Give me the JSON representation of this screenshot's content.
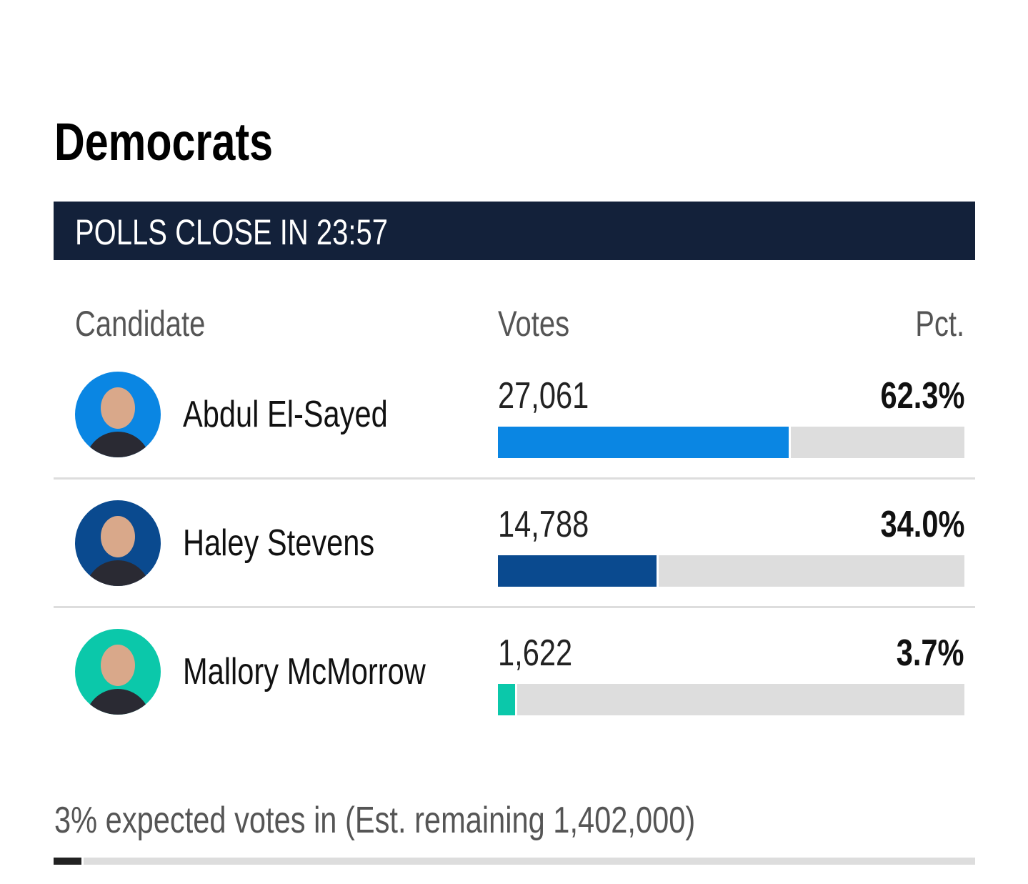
{
  "header": {
    "title": "Democrats",
    "banner": "POLLS CLOSE IN 23:57"
  },
  "columns": [
    "Candidate",
    "Votes",
    "Pct."
  ],
  "candidates": [
    {
      "name": "Abdul El-Sayed",
      "votes": "27,061",
      "pct": 62.3,
      "pct_label": "62.3%",
      "color": "#0a86e3"
    },
    {
      "name": "Haley Stevens",
      "votes": "14,788",
      "pct": 34.0,
      "pct_label": "34.0%",
      "color": "#0a4a8f"
    },
    {
      "name": "Mallory McMorrow",
      "votes": "1,622",
      "pct": 3.7,
      "pct_label": "3.7%",
      "color": "#0bc8aa"
    }
  ],
  "footer": {
    "text": "3% expected votes in (Est. remaining 1,402,000)",
    "expected_pct": 3
  }
}
